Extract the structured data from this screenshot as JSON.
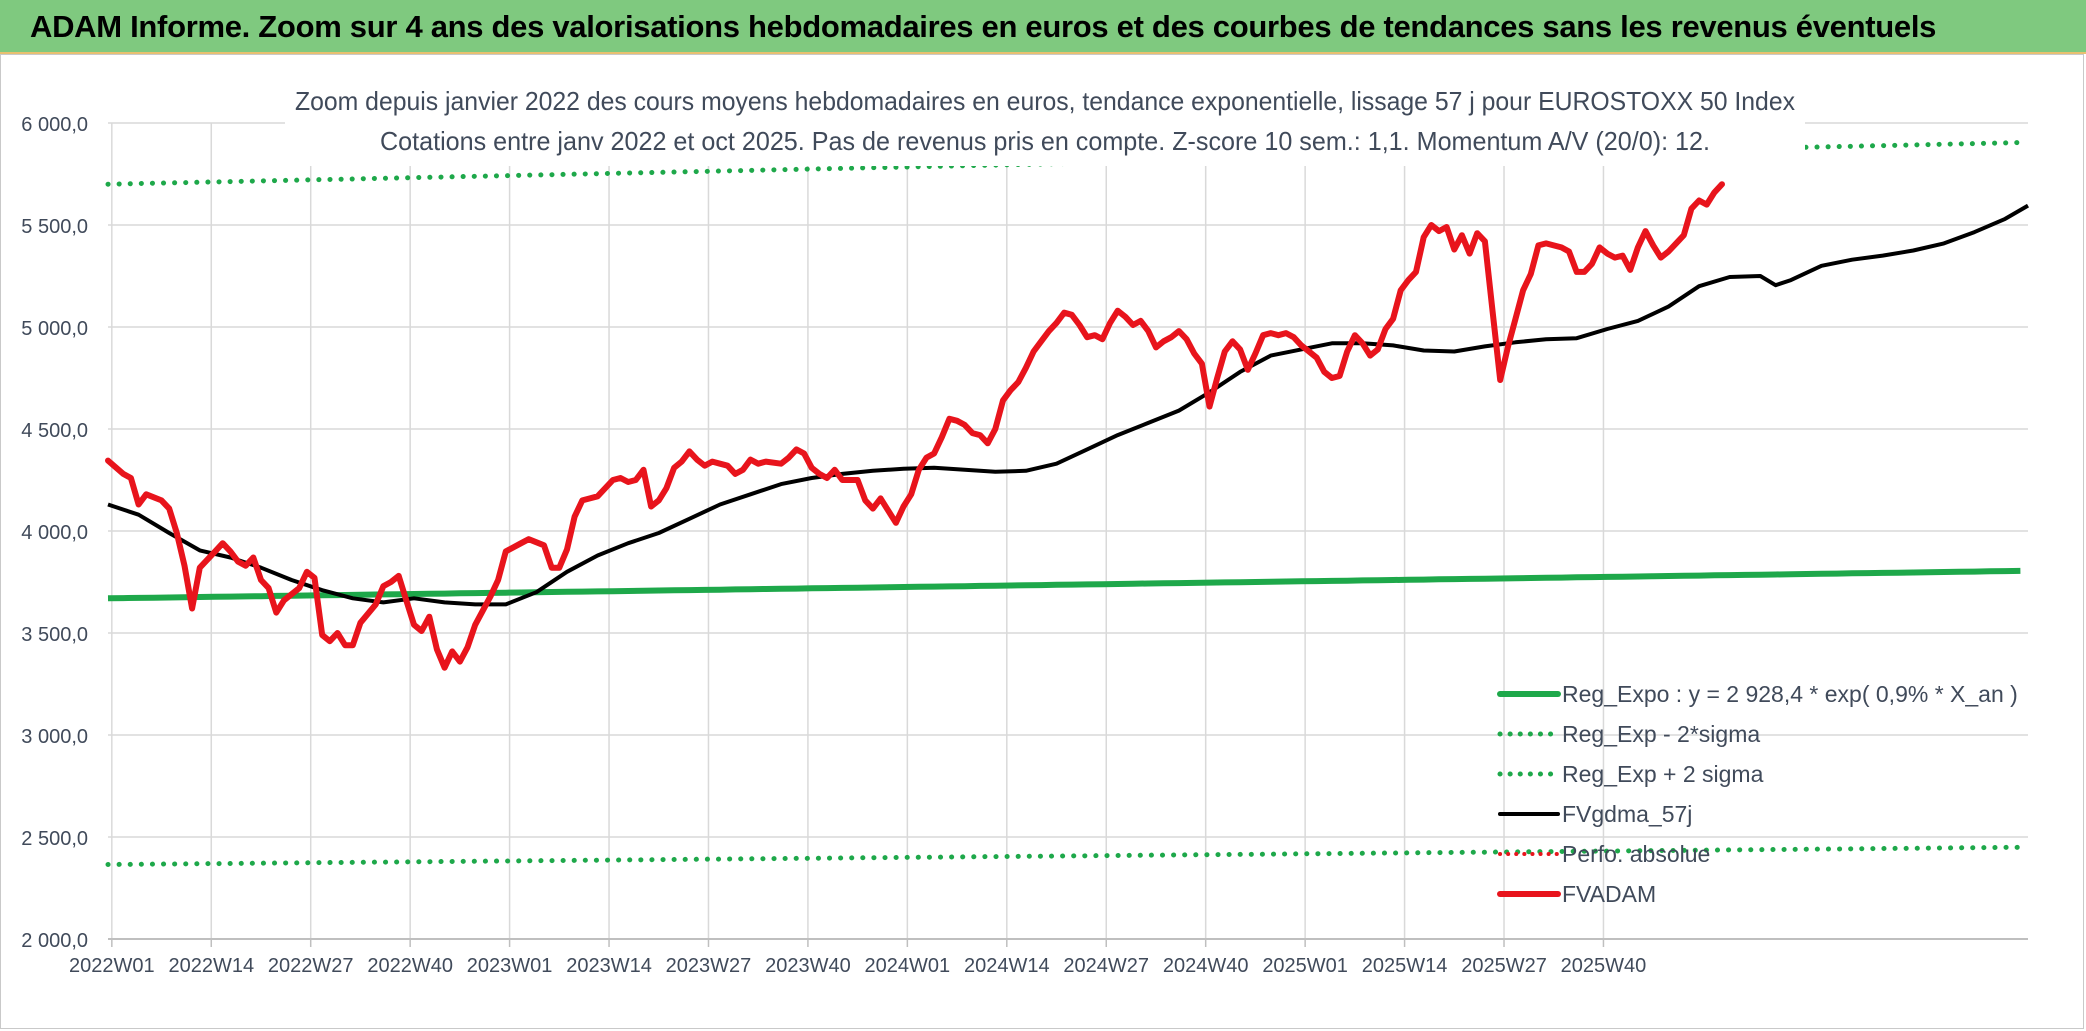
{
  "banner": {
    "title": "ADAM Informe. Zoom sur 4 ans des valorisations hebdomadaires en euros et des courbes de tendances sans les revenus éventuels"
  },
  "colors": {
    "banner": "#7fc97f",
    "reg_expo": "#1ea84a",
    "sigma_bands": "#1ea84a",
    "fvgdma": "#000000",
    "fvadam": "#e8141c",
    "grid": "#d9d9d9",
    "axis_text": "#404a5a"
  },
  "chart_data": {
    "type": "line",
    "title": "Zoom depuis janvier 2022 des cours moyens hebdomadaires en euros, tendance exponentielle, lissage 57 j pour EUROSTOXX 50 Index",
    "subtitle": "Cotations entre janv 2022 et oct 2025. Pas de revenus pris en compte. Z-score 10 sem.: 1,1. Momentum A/V (20/0): 12.",
    "xlabel": "",
    "ylabel": "",
    "ylim": [
      2000,
      6000
    ],
    "yticks": [
      "6 000,0",
      "5 500,0",
      "5 000,0",
      "4 500,0",
      "4 000,0",
      "3 500,0",
      "3 000,0",
      "2 500,0",
      "2 000,0"
    ],
    "ytick_values": [
      6000,
      5500,
      5000,
      4500,
      4000,
      3500,
      3000,
      2500,
      2000
    ],
    "xticks": [
      "2022W01",
      "2022W14",
      "2022W27",
      "2022W40",
      "2023W01",
      "2023W14",
      "2023W27",
      "2023W40",
      "2024W01",
      "2024W14",
      "2024W27",
      "2024W40",
      "2025W01",
      "2025W14",
      "2025W27",
      "2025W40"
    ],
    "x_range_weeks": "2022W01 – 2025W43",
    "grid": true,
    "legend_position": "bottom-right",
    "series": [
      {
        "name": "Reg_Expo : y = 2 928,4 * exp( 0,9% *  X_an )",
        "style": "solid",
        "color": "#1ea84a",
        "start": 3670,
        "end": 3805
      },
      {
        "name": "Reg_Exp - 2*sigma",
        "style": "dotted",
        "color": "#1ea84a",
        "start": 2365,
        "end": 2450
      },
      {
        "name": "Reg_Exp + 2 sigma",
        "style": "dotted",
        "color": "#1ea84a",
        "start": 5700,
        "end": 5905
      },
      {
        "name": "FVgdma_57j",
        "style": "solid",
        "color": "#000000",
        "points": [
          [
            0,
            4130
          ],
          [
            4,
            4080
          ],
          [
            8,
            3990
          ],
          [
            12,
            3905
          ],
          [
            16,
            3870
          ],
          [
            20,
            3820
          ],
          [
            24,
            3760
          ],
          [
            28,
            3710
          ],
          [
            32,
            3670
          ],
          [
            36,
            3650
          ],
          [
            40,
            3670
          ],
          [
            44,
            3650
          ],
          [
            48,
            3640
          ],
          [
            52,
            3640
          ],
          [
            56,
            3700
          ],
          [
            60,
            3800
          ],
          [
            64,
            3880
          ],
          [
            68,
            3940
          ],
          [
            72,
            3990
          ],
          [
            76,
            4060
          ],
          [
            80,
            4130
          ],
          [
            84,
            4180
          ],
          [
            88,
            4230
          ],
          [
            92,
            4260
          ],
          [
            96,
            4280
          ],
          [
            100,
            4295
          ],
          [
            104,
            4305
          ],
          [
            108,
            4310
          ],
          [
            112,
            4300
          ],
          [
            116,
            4290
          ],
          [
            120,
            4295
          ],
          [
            124,
            4330
          ],
          [
            128,
            4400
          ],
          [
            132,
            4470
          ],
          [
            136,
            4530
          ],
          [
            140,
            4590
          ],
          [
            144,
            4680
          ],
          [
            148,
            4780
          ],
          [
            152,
            4860
          ],
          [
            156,
            4890
          ],
          [
            160,
            4920
          ],
          [
            164,
            4920
          ],
          [
            168,
            4910
          ],
          [
            172,
            4885
          ],
          [
            176,
            4880
          ],
          [
            180,
            4905
          ],
          [
            184,
            4925
          ],
          [
            188,
            4940
          ],
          [
            192,
            4945
          ],
          [
            196,
            4990
          ],
          [
            200,
            5030
          ],
          [
            204,
            5100
          ],
          [
            208,
            5200
          ],
          [
            212,
            5245
          ],
          [
            216,
            5250
          ],
          [
            218,
            5205
          ],
          [
            220,
            5230
          ],
          [
            224,
            5300
          ],
          [
            228,
            5330
          ],
          [
            232,
            5350
          ],
          [
            236,
            5375
          ],
          [
            240,
            5410
          ],
          [
            244,
            5465
          ],
          [
            248,
            5530
          ],
          [
            251,
            5595
          ]
        ]
      },
      {
        "name": "Perfo. absolue",
        "style": "dotted",
        "color": "#e8141c"
      },
      {
        "name": "FVADAM",
        "style": "solid",
        "color": "#e8141c",
        "points": [
          [
            0,
            4345
          ],
          [
            2,
            4280
          ],
          [
            3,
            4260
          ],
          [
            4,
            4130
          ],
          [
            5,
            4180
          ],
          [
            7,
            4150
          ],
          [
            8,
            4110
          ],
          [
            9,
            3990
          ],
          [
            10,
            3830
          ],
          [
            11,
            3620
          ],
          [
            12,
            3820
          ],
          [
            14,
            3900
          ],
          [
            15,
            3940
          ],
          [
            16,
            3900
          ],
          [
            17,
            3850
          ],
          [
            18,
            3830
          ],
          [
            19,
            3870
          ],
          [
            20,
            3760
          ],
          [
            21,
            3720
          ],
          [
            22,
            3600
          ],
          [
            23,
            3660
          ],
          [
            25,
            3720
          ],
          [
            26,
            3800
          ],
          [
            27,
            3770
          ],
          [
            28,
            3490
          ],
          [
            29,
            3460
          ],
          [
            30,
            3500
          ],
          [
            31,
            3440
          ],
          [
            32,
            3440
          ],
          [
            33,
            3550
          ],
          [
            35,
            3640
          ],
          [
            36,
            3730
          ],
          [
            37,
            3750
          ],
          [
            38,
            3780
          ],
          [
            39,
            3660
          ],
          [
            40,
            3540
          ],
          [
            41,
            3510
          ],
          [
            42,
            3580
          ],
          [
            43,
            3420
          ],
          [
            44,
            3330
          ],
          [
            45,
            3410
          ],
          [
            46,
            3360
          ],
          [
            47,
            3430
          ],
          [
            48,
            3540
          ],
          [
            50,
            3680
          ],
          [
            51,
            3760
          ],
          [
            52,
            3900
          ],
          [
            54,
            3940
          ],
          [
            55,
            3960
          ],
          [
            57,
            3930
          ],
          [
            58,
            3820
          ],
          [
            59,
            3820
          ],
          [
            60,
            3910
          ],
          [
            61,
            4070
          ],
          [
            62,
            4150
          ],
          [
            63,
            4160
          ],
          [
            64,
            4170
          ],
          [
            66,
            4250
          ],
          [
            67,
            4260
          ],
          [
            68,
            4240
          ],
          [
            69,
            4250
          ],
          [
            70,
            4300
          ],
          [
            71,
            4120
          ],
          [
            72,
            4150
          ],
          [
            73,
            4210
          ],
          [
            74,
            4310
          ],
          [
            75,
            4340
          ],
          [
            76,
            4390
          ],
          [
            77,
            4350
          ],
          [
            78,
            4320
          ],
          [
            79,
            4340
          ],
          [
            80,
            4330
          ],
          [
            81,
            4320
          ],
          [
            82,
            4280
          ],
          [
            83,
            4300
          ],
          [
            84,
            4350
          ],
          [
            85,
            4330
          ],
          [
            86,
            4340
          ],
          [
            88,
            4330
          ],
          [
            89,
            4360
          ],
          [
            90,
            4400
          ],
          [
            91,
            4380
          ],
          [
            92,
            4310
          ],
          [
            93,
            4280
          ],
          [
            94,
            4260
          ],
          [
            95,
            4300
          ],
          [
            96,
            4250
          ],
          [
            98,
            4250
          ],
          [
            99,
            4150
          ],
          [
            100,
            4110
          ],
          [
            101,
            4160
          ],
          [
            102,
            4100
          ],
          [
            103,
            4040
          ],
          [
            104,
            4120
          ],
          [
            105,
            4180
          ],
          [
            106,
            4300
          ],
          [
            107,
            4360
          ],
          [
            108,
            4380
          ],
          [
            109,
            4460
          ],
          [
            110,
            4550
          ],
          [
            111,
            4540
          ],
          [
            112,
            4520
          ],
          [
            113,
            4480
          ],
          [
            114,
            4470
          ],
          [
            115,
            4430
          ],
          [
            116,
            4500
          ],
          [
            117,
            4640
          ],
          [
            118,
            4690
          ],
          [
            119,
            4730
          ],
          [
            120,
            4800
          ],
          [
            121,
            4880
          ],
          [
            122,
            4930
          ],
          [
            123,
            4980
          ],
          [
            124,
            5020
          ],
          [
            125,
            5070
          ],
          [
            126,
            5060
          ],
          [
            127,
            5010
          ],
          [
            128,
            4950
          ],
          [
            129,
            4960
          ],
          [
            130,
            4940
          ],
          [
            131,
            5020
          ],
          [
            132,
            5080
          ],
          [
            133,
            5050
          ],
          [
            134,
            5010
          ],
          [
            135,
            5030
          ],
          [
            136,
            4980
          ],
          [
            137,
            4900
          ],
          [
            138,
            4930
          ],
          [
            139,
            4950
          ],
          [
            140,
            4980
          ],
          [
            141,
            4940
          ],
          [
            142,
            4870
          ],
          [
            143,
            4820
          ],
          [
            144,
            4610
          ],
          [
            145,
            4750
          ],
          [
            146,
            4880
          ],
          [
            147,
            4930
          ],
          [
            148,
            4890
          ],
          [
            149,
            4790
          ],
          [
            150,
            4870
          ],
          [
            151,
            4960
          ],
          [
            152,
            4970
          ],
          [
            153,
            4960
          ],
          [
            154,
            4970
          ],
          [
            155,
            4950
          ],
          [
            156,
            4910
          ],
          [
            157,
            4880
          ],
          [
            158,
            4850
          ],
          [
            159,
            4780
          ],
          [
            160,
            4750
          ],
          [
            161,
            4760
          ],
          [
            162,
            4880
          ],
          [
            163,
            4960
          ],
          [
            164,
            4920
          ],
          [
            165,
            4860
          ],
          [
            166,
            4890
          ],
          [
            167,
            4990
          ],
          [
            168,
            5040
          ],
          [
            169,
            5180
          ],
          [
            170,
            5230
          ],
          [
            171,
            5270
          ],
          [
            172,
            5440
          ],
          [
            173,
            5500
          ],
          [
            174,
            5470
          ],
          [
            175,
            5490
          ],
          [
            176,
            5380
          ],
          [
            177,
            5450
          ],
          [
            178,
            5360
          ],
          [
            179,
            5460
          ],
          [
            180,
            5420
          ],
          [
            181,
            5080
          ],
          [
            182,
            4740
          ],
          [
            183,
            4900
          ],
          [
            184,
            5040
          ],
          [
            185,
            5180
          ],
          [
            186,
            5260
          ],
          [
            187,
            5400
          ],
          [
            188,
            5410
          ],
          [
            189,
            5400
          ],
          [
            190,
            5390
          ],
          [
            191,
            5370
          ],
          [
            192,
            5270
          ],
          [
            193,
            5270
          ],
          [
            194,
            5310
          ],
          [
            195,
            5390
          ],
          [
            196,
            5360
          ],
          [
            197,
            5340
          ],
          [
            198,
            5350
          ],
          [
            199,
            5280
          ],
          [
            200,
            5390
          ],
          [
            201,
            5470
          ],
          [
            202,
            5400
          ],
          [
            203,
            5340
          ],
          [
            204,
            5370
          ],
          [
            205,
            5410
          ],
          [
            206,
            5450
          ],
          [
            207,
            5580
          ],
          [
            208,
            5620
          ],
          [
            209,
            5600
          ],
          [
            210,
            5660
          ],
          [
            211,
            5700
          ]
        ]
      }
    ]
  }
}
